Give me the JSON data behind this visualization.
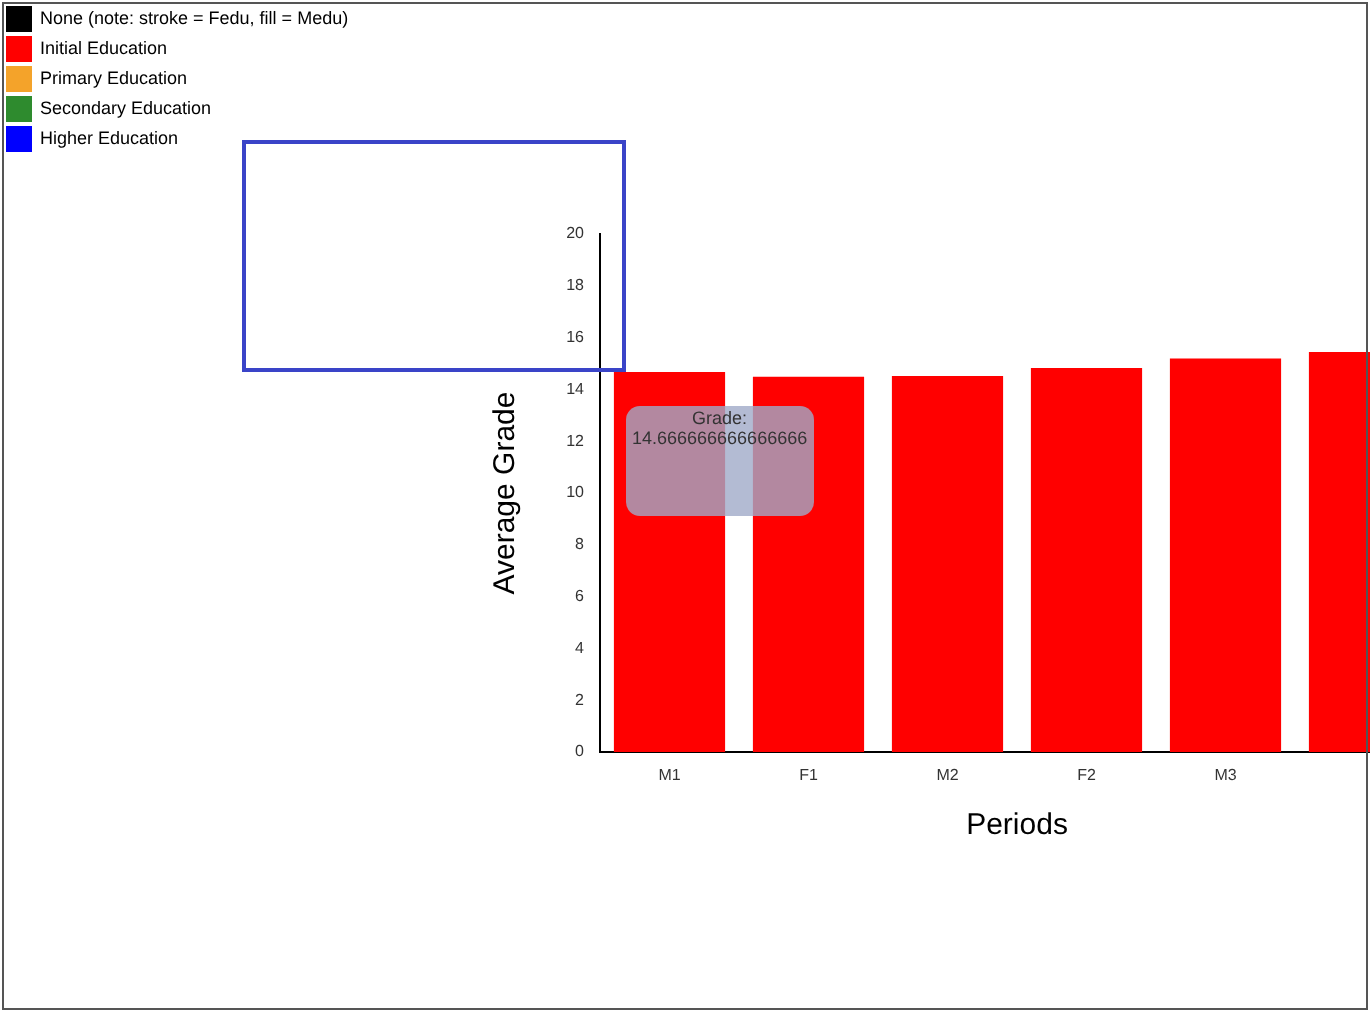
{
  "chart_data": {
    "type": "bar",
    "xlabel": "Periods",
    "ylabel": "Average Grade",
    "categories": [
      "M1",
      "F1",
      "M2",
      "F2",
      "M3",
      null
    ],
    "values": [
      14.67,
      14.49,
      14.52,
      14.83,
      15.19,
      15.44
    ],
    "color": "#ff0000",
    "ylim": [
      0,
      20
    ],
    "yticks": [
      0,
      2,
      4,
      6,
      8,
      10,
      12,
      14,
      16,
      18,
      20
    ],
    "grid": false,
    "legend": false,
    "annotations": [
      "None (note: stroke = Fedu, fill = Medu)",
      "Initial Education",
      "Primary Education",
      "Secondary Education",
      "Higher Education",
      "Grade: 14.666666666666666"
    ]
  }
}
